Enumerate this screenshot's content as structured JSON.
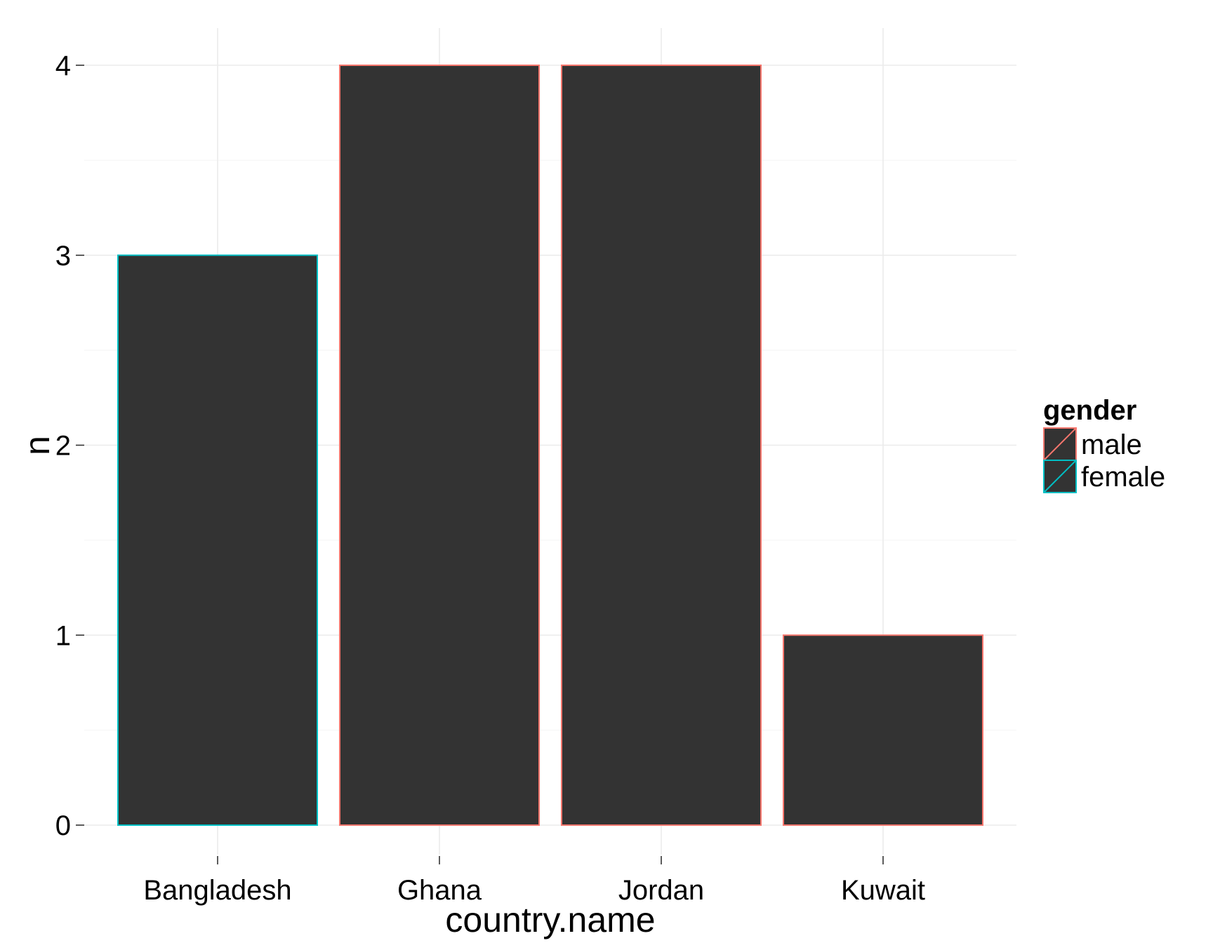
{
  "chart_data": {
    "type": "bar",
    "categories": [
      "Bangladesh",
      "Ghana",
      "Jordan",
      "Kuwait"
    ],
    "values": [
      3,
      4,
      4,
      1
    ],
    "outline_group": [
      "female",
      "male",
      "male",
      "male"
    ],
    "xlabel": "country.name",
    "ylabel": "n",
    "ylim": [
      0,
      4
    ],
    "yticks": [
      0,
      1,
      2,
      3,
      4
    ],
    "grid": true,
    "bar_fill": "#333333",
    "legend": {
      "title": "gender",
      "placement": "right",
      "entries": [
        {
          "label": "male",
          "color": "#F8766D"
        },
        {
          "label": "female",
          "color": "#00BFC4"
        }
      ]
    }
  }
}
